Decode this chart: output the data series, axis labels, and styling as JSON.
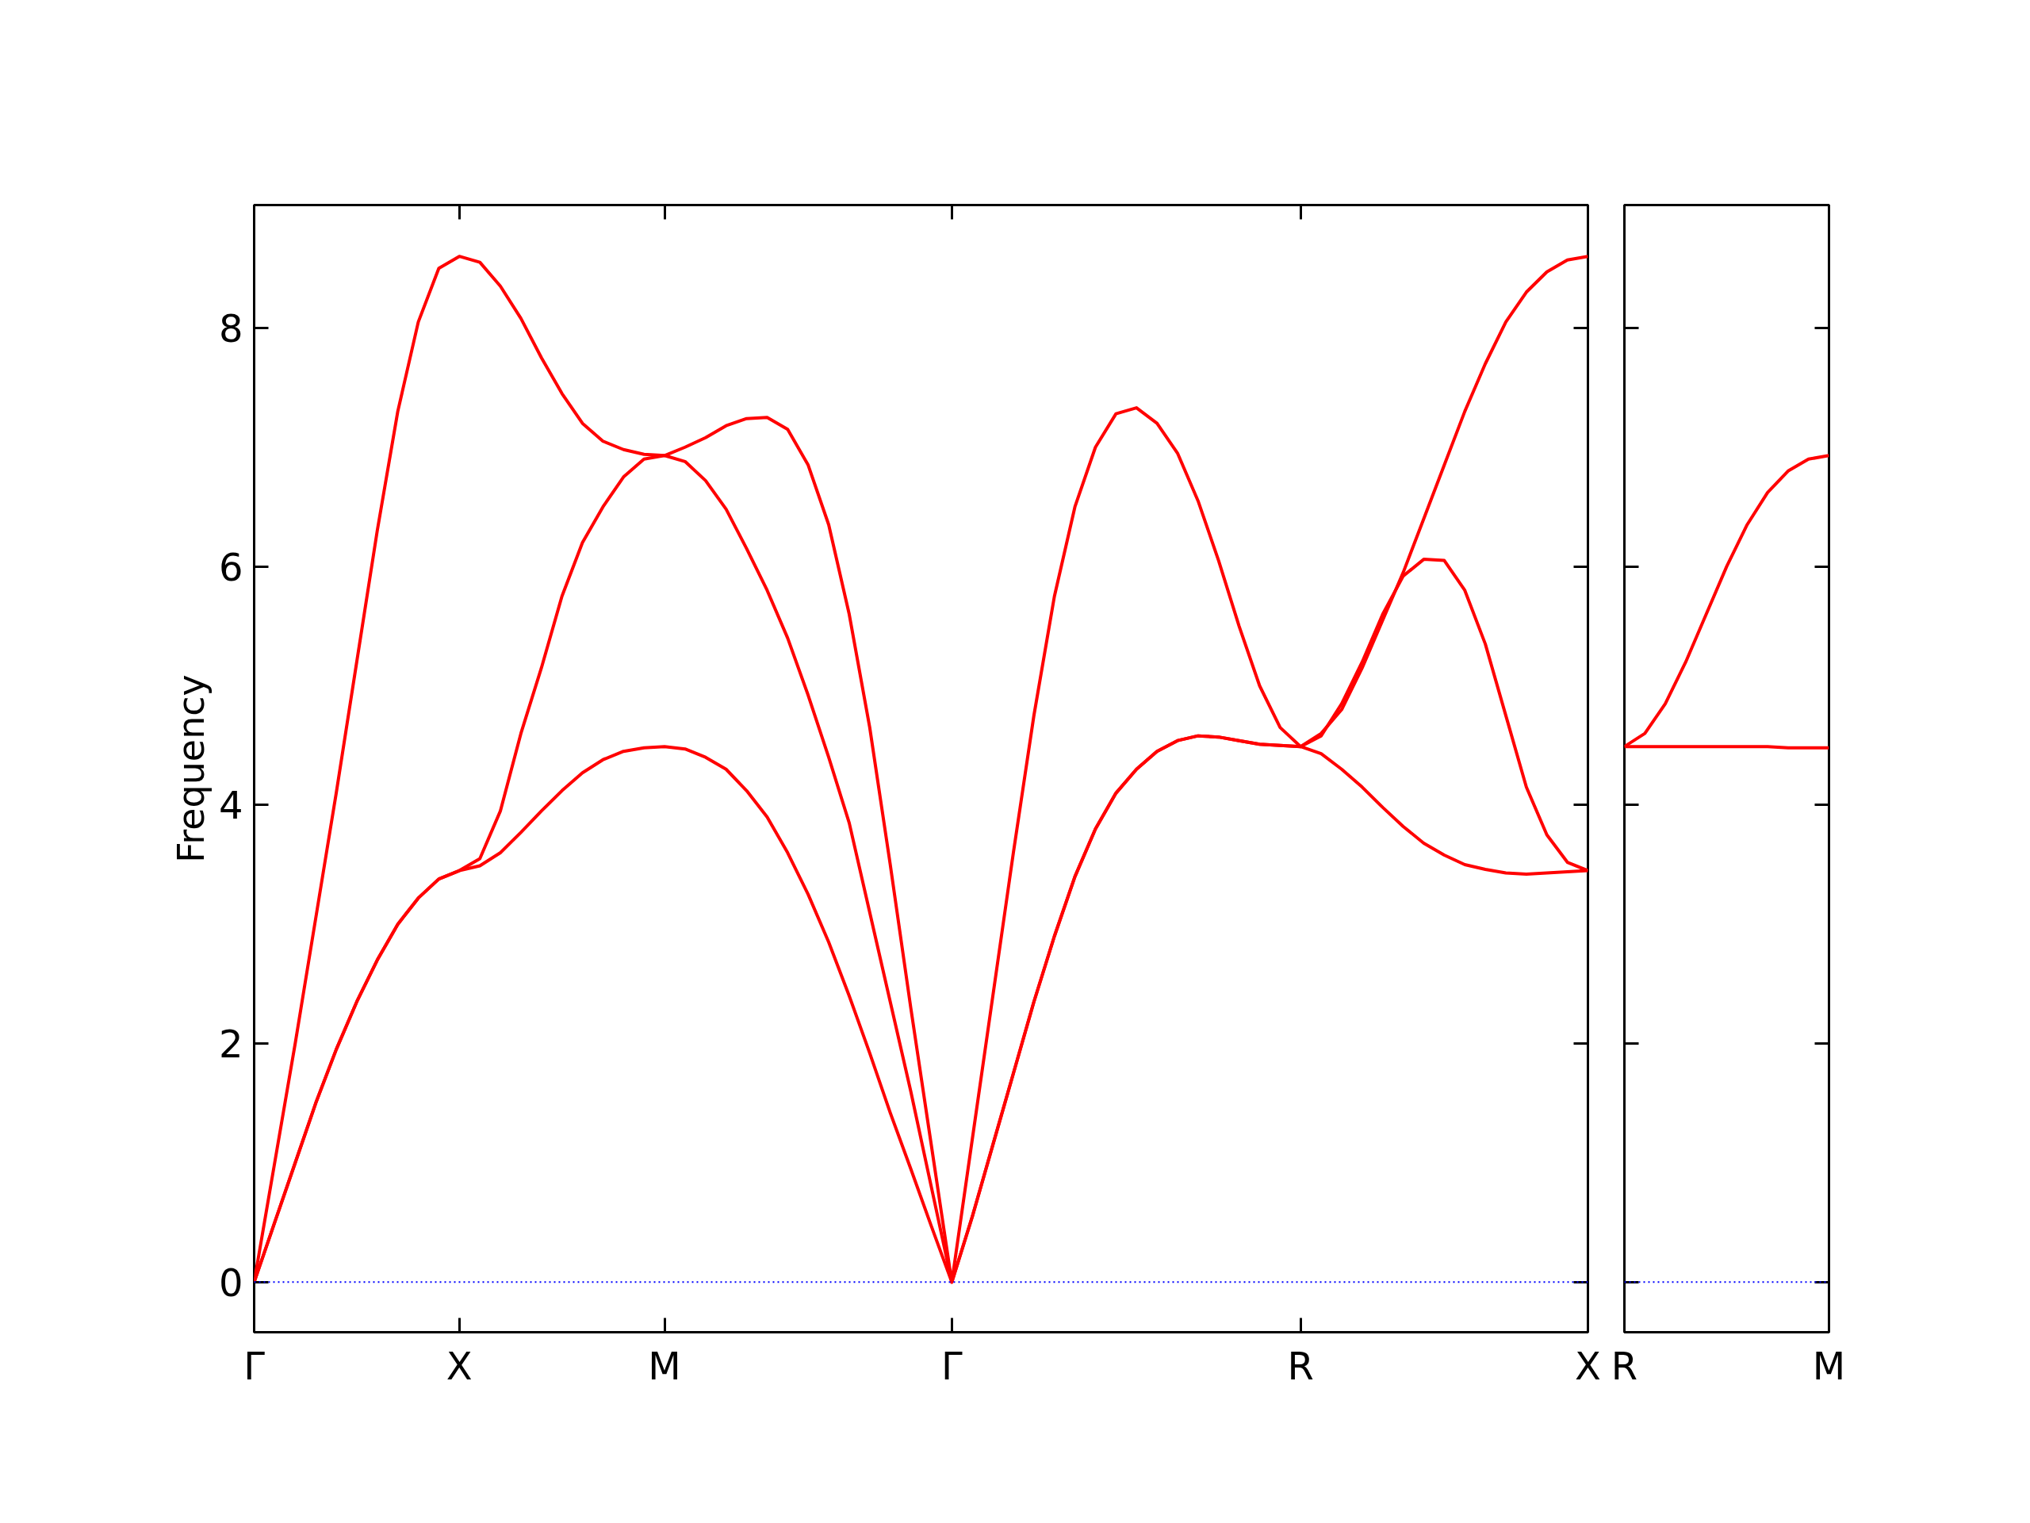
{
  "chart_data": [
    {
      "type": "line",
      "ylabel": "Frequency",
      "ylim": [
        -0.42,
        9.03
      ],
      "yticks": [
        0,
        2,
        4,
        6,
        8
      ],
      "categories": [
        "Γ",
        null,
        null,
        null,
        null,
        null,
        null,
        null,
        null,
        null,
        "X",
        null,
        null,
        null,
        null,
        null,
        null,
        null,
        null,
        null,
        "M",
        null,
        null,
        null,
        null,
        null,
        null,
        null,
        null,
        null,
        null,
        null,
        null,
        null,
        "Γ",
        null,
        null,
        null,
        null,
        null,
        null,
        null,
        null,
        null,
        null,
        null,
        null,
        null,
        null,
        null,
        null,
        "R",
        null,
        null,
        null,
        null,
        null,
        null,
        null,
        null,
        null,
        null,
        null,
        null,
        null,
        "X"
      ],
      "grid": false,
      "marker": "none",
      "line_style": "solid",
      "ref_lines": [
        {
          "axis": "y",
          "value": 0,
          "color": "#0000ff",
          "line_style": "dotted"
        }
      ],
      "series": [
        {
          "color": "#ff0000",
          "values": [
            0,
            0.5,
            1.0,
            1.5,
            1.95,
            2.35,
            2.7,
            3.0,
            3.22,
            3.38,
            3.45,
            3.49,
            3.6,
            3.77,
            3.95,
            4.12,
            4.27,
            4.38,
            4.45,
            4.48,
            4.49,
            4.47,
            4.4,
            4.3,
            4.12,
            3.9,
            3.6,
            3.25,
            2.85,
            2.4,
            1.92,
            1.42,
            0.95,
            0.47,
            0,
            0.55,
            1.15,
            1.75,
            2.35,
            2.9,
            3.4,
            3.8,
            4.1,
            4.3,
            4.45,
            4.54,
            4.58,
            4.57,
            4.54,
            4.51,
            4.5,
            4.49,
            4.43,
            4.3,
            4.15,
            3.98,
            3.82,
            3.68,
            3.58,
            3.5,
            3.46,
            3.43,
            3.42,
            3.43,
            3.44,
            3.45
          ]
        },
        {
          "color": "#ff0000",
          "values": [
            0,
            0.5,
            1.0,
            1.5,
            1.95,
            2.35,
            2.7,
            3.0,
            3.22,
            3.38,
            3.45,
            3.55,
            3.95,
            4.6,
            5.15,
            5.75,
            6.2,
            6.5,
            6.75,
            6.9,
            6.93,
            6.88,
            6.72,
            6.48,
            6.15,
            5.8,
            5.4,
            4.92,
            4.4,
            3.85,
            3.1,
            2.35,
            1.6,
            0.8,
            0,
            0.55,
            1.15,
            1.75,
            2.35,
            2.9,
            3.4,
            3.8,
            4.1,
            4.3,
            4.45,
            4.54,
            4.58,
            4.57,
            4.54,
            4.51,
            4.5,
            4.49,
            4.58,
            4.85,
            5.2,
            5.6,
            5.92,
            6.06,
            6.05,
            5.8,
            5.35,
            4.75,
            4.15,
            3.75,
            3.52,
            3.45
          ]
        },
        {
          "color": "#ff0000",
          "values": [
            0,
            1.0,
            2.0,
            3.05,
            4.1,
            5.2,
            6.3,
            7.3,
            8.05,
            8.5,
            8.6,
            8.55,
            8.35,
            8.08,
            7.75,
            7.45,
            7.2,
            7.05,
            6.98,
            6.94,
            6.93,
            7.0,
            7.08,
            7.18,
            7.24,
            7.25,
            7.15,
            6.85,
            6.35,
            5.6,
            4.65,
            3.5,
            2.3,
            1.15,
            0,
            1.2,
            2.4,
            3.6,
            4.75,
            5.75,
            6.5,
            7.0,
            7.28,
            7.33,
            7.2,
            6.95,
            6.55,
            6.05,
            5.5,
            5.0,
            4.65,
            4.49,
            4.6,
            4.8,
            5.15,
            5.55,
            5.95,
            6.4,
            6.85,
            7.3,
            7.7,
            8.05,
            8.3,
            8.47,
            8.57,
            8.6
          ]
        }
      ]
    },
    {
      "type": "line",
      "tick_labels": "x",
      "ylim": [
        -0.42,
        9.03
      ],
      "yticks": [
        0,
        2,
        4,
        6,
        8
      ],
      "categories": [
        "R",
        null,
        null,
        null,
        null,
        null,
        null,
        null,
        null,
        null,
        "M"
      ],
      "grid": false,
      "marker": "none",
      "line_style": "solid",
      "ref_lines": [
        {
          "axis": "y",
          "value": 0,
          "color": "#0000ff",
          "line_style": "dotted"
        }
      ],
      "series": [
        {
          "color": "#ff0000",
          "values": [
            4.49,
            4.49,
            4.49,
            4.49,
            4.49,
            4.49,
            4.49,
            4.49,
            4.48,
            4.48,
            4.48
          ]
        },
        {
          "color": "#ff0000",
          "values": [
            4.49,
            4.6,
            4.85,
            5.2,
            5.6,
            6.0,
            6.35,
            6.62,
            6.8,
            6.9,
            6.93
          ]
        }
      ]
    }
  ]
}
